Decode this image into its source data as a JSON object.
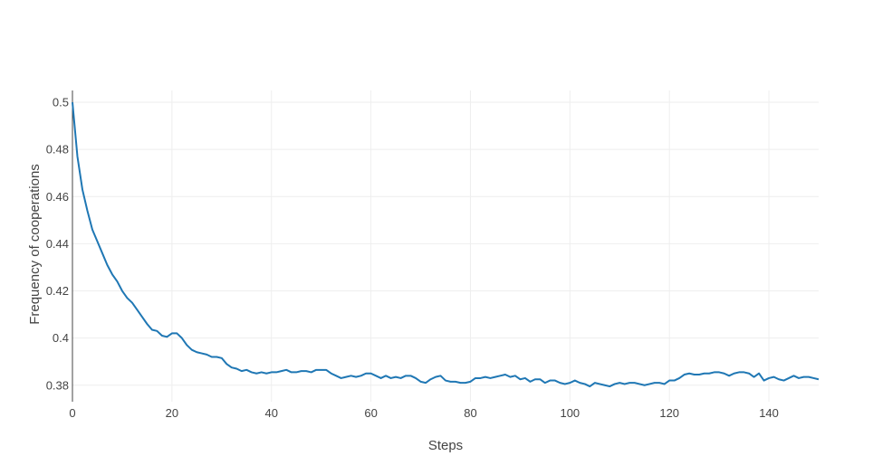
{
  "chart_data": {
    "type": "line",
    "xlabel": "Steps",
    "ylabel": "Frequency of cooperations",
    "xlim": [
      0,
      150
    ],
    "ylim": [
      0.373,
      0.505
    ],
    "xticks": [
      0,
      20,
      40,
      60,
      80,
      100,
      120,
      140
    ],
    "xtick_labels": [
      "0",
      "20",
      "40",
      "60",
      "80",
      "100",
      "120",
      "140"
    ],
    "yticks": [
      0.38,
      0.4,
      0.42,
      0.44,
      0.46,
      0.48,
      0.5
    ],
    "ytick_labels": [
      "0.38",
      "0.4",
      "0.42",
      "0.44",
      "0.46",
      "0.48",
      "0.5"
    ],
    "grid": true,
    "line_color": "#1f77b4",
    "series": [
      {
        "x": [
          0,
          1,
          2,
          3,
          4,
          5,
          6,
          7,
          8,
          9,
          10,
          11,
          12,
          13,
          14,
          15,
          16,
          17,
          18,
          19,
          20,
          21,
          22,
          23,
          24,
          25,
          26,
          27,
          28,
          29,
          30,
          31,
          32,
          33,
          34,
          35,
          36,
          37,
          38,
          39,
          40,
          41,
          42,
          43,
          44,
          45,
          46,
          47,
          48,
          49,
          50,
          51,
          52,
          53,
          54,
          55,
          56,
          57,
          58,
          59,
          60,
          61,
          62,
          63,
          64,
          65,
          66,
          67,
          68,
          69,
          70,
          71,
          72,
          73,
          74,
          75,
          76,
          77,
          78,
          79,
          80,
          81,
          82,
          83,
          84,
          85,
          86,
          87,
          88,
          89,
          90,
          91,
          92,
          93,
          94,
          95,
          96,
          97,
          98,
          99,
          100,
          101,
          102,
          103,
          104,
          105,
          106,
          107,
          108,
          109,
          110,
          111,
          112,
          113,
          114,
          115,
          116,
          117,
          118,
          119,
          120,
          121,
          122,
          123,
          124,
          125,
          126,
          127,
          128,
          129,
          130,
          131,
          132,
          133,
          134,
          135,
          136,
          137,
          138,
          139,
          140,
          141,
          142,
          143,
          144,
          145,
          146,
          147,
          148,
          149,
          150
        ],
        "y": [
          0.5,
          0.477,
          0.463,
          0.454,
          0.446,
          0.441,
          0.436,
          0.431,
          0.427,
          0.424,
          0.42,
          0.417,
          0.415,
          0.412,
          0.409,
          0.406,
          0.4035,
          0.403,
          0.401,
          0.4005,
          0.402,
          0.402,
          0.4,
          0.397,
          0.395,
          0.394,
          0.3935,
          0.393,
          0.392,
          0.392,
          0.3915,
          0.389,
          0.3875,
          0.387,
          0.386,
          0.3865,
          0.3855,
          0.385,
          0.3855,
          0.385,
          0.3855,
          0.3855,
          0.386,
          0.3865,
          0.3855,
          0.3855,
          0.386,
          0.386,
          0.3855,
          0.3865,
          0.3865,
          0.3865,
          0.385,
          0.384,
          0.383,
          0.3835,
          0.384,
          0.3835,
          0.384,
          0.385,
          0.385,
          0.384,
          0.383,
          0.384,
          0.383,
          0.3835,
          0.383,
          0.384,
          0.384,
          0.383,
          0.3815,
          0.381,
          0.3825,
          0.3835,
          0.384,
          0.382,
          0.3815,
          0.3815,
          0.381,
          0.381,
          0.3815,
          0.383,
          0.383,
          0.3835,
          0.383,
          0.3835,
          0.384,
          0.3845,
          0.3835,
          0.384,
          0.3825,
          0.383,
          0.3815,
          0.3825,
          0.3825,
          0.381,
          0.382,
          0.382,
          0.381,
          0.3805,
          0.381,
          0.382,
          0.381,
          0.3805,
          0.3795,
          0.381,
          0.3805,
          0.38,
          0.3795,
          0.3805,
          0.381,
          0.3805,
          0.381,
          0.381,
          0.3805,
          0.38,
          0.3805,
          0.381,
          0.381,
          0.3805,
          0.382,
          0.382,
          0.383,
          0.3845,
          0.385,
          0.3845,
          0.3845,
          0.385,
          0.385,
          0.3855,
          0.3855,
          0.385,
          0.384,
          0.385,
          0.3855,
          0.3855,
          0.385,
          0.3835,
          0.385,
          0.382,
          0.383,
          0.3835,
          0.3825,
          0.382,
          0.383,
          0.384,
          0.383,
          0.3835,
          0.3835,
          0.383,
          0.3825
        ]
      }
    ]
  }
}
